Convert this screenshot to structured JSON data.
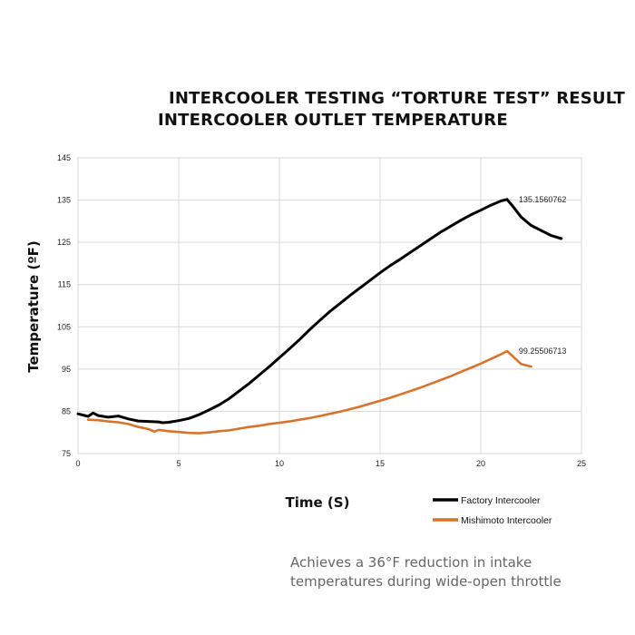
{
  "header": {
    "title_line1": "INTERCOOLER TESTING “TORTURE TEST” RESULT",
    "title_line2": "INTERCOOLER OUTLET TEMPERATURE"
  },
  "caption": {
    "line1": "Achieves a 36°F reduction in intake",
    "line2": "temperatures during wide-open throttle"
  },
  "chart_data": {
    "type": "line",
    "title": "INTERCOOLER TESTING “TORTURE TEST” RESULT",
    "subtitle": "INTERCOOLER OUTLET TEMPERATURE",
    "xlabel": "Time (S)",
    "ylabel": "Temperature (ºF)",
    "xlim": [
      0,
      25
    ],
    "ylim": [
      75,
      145
    ],
    "xticks": [
      0,
      5,
      10,
      15,
      20,
      25
    ],
    "yticks": [
      75,
      85,
      95,
      105,
      115,
      125,
      135,
      145
    ],
    "grid": true,
    "legend_position": "bottom-right",
    "series": [
      {
        "name": "Factory Intercooler",
        "color": "#000000",
        "x": [
          0,
          0.5,
          0.75,
          1,
          1.5,
          2,
          2.5,
          3,
          3.5,
          4,
          4.2,
          4.5,
          5,
          5.5,
          6,
          6.5,
          7,
          7.5,
          8,
          8.5,
          9,
          9.5,
          10,
          10.5,
          11,
          11.5,
          12,
          12.5,
          13,
          13.5,
          14,
          14.5,
          15,
          15.5,
          16,
          16.5,
          17,
          17.5,
          18,
          18.5,
          19,
          19.5,
          20,
          20.5,
          21,
          21.3,
          21.6,
          22,
          22.5,
          23,
          23.5,
          24
        ],
        "y": [
          84.4,
          83.8,
          84.6,
          84.0,
          83.6,
          83.9,
          83.2,
          82.7,
          82.6,
          82.5,
          82.3,
          82.4,
          82.8,
          83.3,
          84.2,
          85.3,
          86.5,
          88.0,
          89.8,
          91.6,
          93.6,
          95.6,
          97.7,
          99.8,
          102.0,
          104.3,
          106.5,
          108.6,
          110.5,
          112.4,
          114.2,
          116.0,
          117.8,
          119.5,
          121.0,
          122.6,
          124.2,
          125.8,
          127.4,
          128.8,
          130.2,
          131.5,
          132.6,
          133.8,
          134.8,
          135.1560762,
          133.5,
          131.0,
          129.0,
          127.8,
          126.6,
          125.9
        ],
        "annotation": "135.1560762",
        "annotation_x": 21.3,
        "annotation_y": 135.1560762
      },
      {
        "name": "Mishimoto Intercooler",
        "color": "#d6742f",
        "x": [
          0.5,
          1,
          1.5,
          2,
          2.5,
          3,
          3.5,
          3.8,
          4,
          4.5,
          5,
          5.5,
          6,
          6.5,
          7,
          7.5,
          8,
          8.5,
          9,
          9.5,
          10,
          10.5,
          11,
          11.5,
          12,
          12.5,
          13,
          13.5,
          14,
          14.5,
          15,
          15.5,
          16,
          16.5,
          17,
          17.5,
          18,
          18.5,
          19,
          19.5,
          20,
          20.5,
          21,
          21.3,
          21.6,
          22,
          22.5
        ],
        "y": [
          83.0,
          82.9,
          82.6,
          82.4,
          82.0,
          81.3,
          80.8,
          80.2,
          80.6,
          80.3,
          80.1,
          79.9,
          79.8,
          80.0,
          80.3,
          80.5,
          80.9,
          81.3,
          81.6,
          82.0,
          82.3,
          82.6,
          83.0,
          83.4,
          83.9,
          84.4,
          84.9,
          85.5,
          86.1,
          86.8,
          87.5,
          88.2,
          89.0,
          89.8,
          90.6,
          91.5,
          92.4,
          93.3,
          94.3,
          95.3,
          96.3,
          97.4,
          98.5,
          99.25506713,
          98.0,
          96.2,
          95.6
        ],
        "annotation": "99.25506713",
        "annotation_x": 21.3,
        "annotation_y": 99.25506713
      }
    ]
  }
}
